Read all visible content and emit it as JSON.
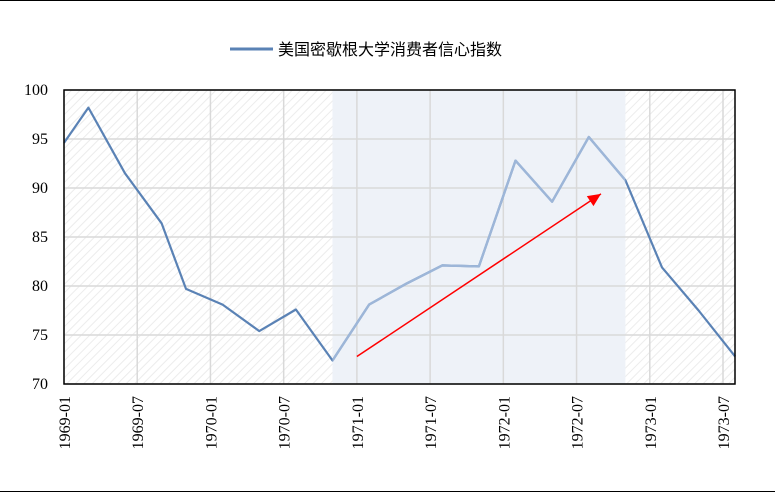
{
  "chart_data": {
    "type": "line",
    "title": "",
    "xlabel": "",
    "ylabel": "",
    "ylim": [
      70,
      100
    ],
    "yticks": [
      70,
      75,
      80,
      85,
      90,
      95,
      100
    ],
    "xticks": [
      "1969-01",
      "1969-07",
      "1970-01",
      "1970-07",
      "1971-01",
      "1971-07",
      "1972-01",
      "1972-07",
      "1973-01",
      "1973-07"
    ],
    "legend": {
      "position": "top-center",
      "label": "美国密歇根大学消费者信心指数"
    },
    "grid": true,
    "shaded_region": {
      "start": "1970-11",
      "end": "1972-11"
    },
    "annotation_arrow": {
      "from": {
        "x": "1971-01",
        "y": 72.8
      },
      "to": {
        "x": "1972-09",
        "y": 89.4
      },
      "color": "#ff0000"
    },
    "series": [
      {
        "name": "美国密歇根大学消费者信心指数",
        "color": "#5a82b5",
        "x": [
          "1969-01",
          "1969-03",
          "1969-06",
          "1969-09",
          "1969-11",
          "1970-02",
          "1970-05",
          "1970-08",
          "1970-11",
          "1971-02",
          "1971-05",
          "1971-08",
          "1971-11",
          "1972-02",
          "1972-05",
          "1972-08",
          "1972-11",
          "1973-02",
          "1973-05",
          "1973-08"
        ],
        "values": [
          94.6,
          98.2,
          91.5,
          86.4,
          79.7,
          78.1,
          75.4,
          77.6,
          72.4,
          78.1,
          80.2,
          82.1,
          82.0,
          92.8,
          88.6,
          95.2,
          90.8,
          81.9,
          77.5,
          72.8
        ]
      }
    ]
  }
}
